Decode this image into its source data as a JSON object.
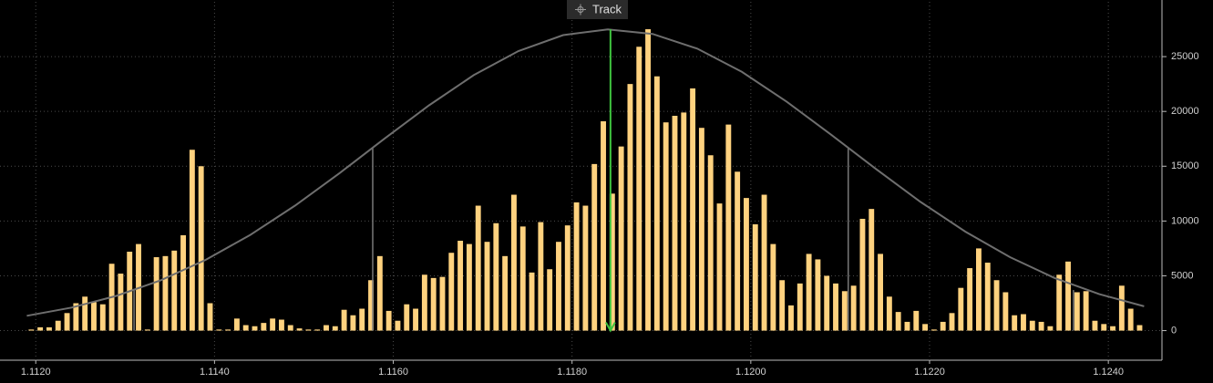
{
  "chart_data": {
    "type": "histogram",
    "button": "Track",
    "color": "#ffd27f",
    "bins": [
      1.1119,
      1.112,
      1.1121,
      1.1122,
      1.1123,
      1.1124,
      1.1125,
      1.1126,
      1.1127,
      1.1128,
      1.1129,
      1.113,
      1.1131,
      1.1132,
      1.1133,
      1.1134,
      1.1135,
      1.1136,
      1.1137,
      1.1138,
      1.1139,
      1.114,
      1.1141,
      1.1142,
      1.1143,
      1.1144,
      1.1145,
      1.1146,
      1.1147,
      1.1148,
      1.1149,
      1.115,
      1.1151,
      1.1152,
      1.1153,
      1.1154,
      1.1155,
      1.1156,
      1.1157,
      1.1158,
      1.1159,
      1.116,
      1.1161,
      1.1162,
      1.1163,
      1.1164,
      1.1165,
      1.1166,
      1.1167,
      1.1168,
      1.1169,
      1.117,
      1.1171,
      1.1172,
      1.1173,
      1.1174,
      1.1175,
      1.1176,
      1.1177,
      1.1178,
      1.1179,
      1.118,
      1.1181,
      1.1182,
      1.1183,
      1.1184,
      1.1185,
      1.1186,
      1.1187,
      1.1188,
      1.1189,
      1.119,
      1.1191,
      1.1192,
      1.1193,
      1.1194,
      1.1195,
      1.1196,
      1.1197,
      1.1198,
      1.1199,
      1.12,
      1.1201,
      1.1202,
      1.1203,
      1.1204,
      1.1205,
      1.1206,
      1.1207,
      1.1208,
      1.1209,
      1.121,
      1.1211,
      1.1212,
      1.1213,
      1.1214,
      1.1215,
      1.1216,
      1.1217,
      1.1218,
      1.1219,
      1.122,
      1.1221,
      1.1222,
      1.1223,
      1.1224,
      1.1225,
      1.1226,
      1.1227,
      1.1228,
      1.1229,
      1.123,
      1.1231,
      1.1232,
      1.1233,
      1.1234,
      1.1235,
      1.1236,
      1.1237,
      1.1238,
      1.1239,
      1.124,
      1.1241,
      1.1242,
      1.1243,
      1.1244
    ],
    "values": [
      100,
      300,
      300,
      900,
      1600,
      2500,
      3100,
      2600,
      2400,
      6100,
      5200,
      7200,
      7900,
      100,
      6700,
      6800,
      7300,
      8700,
      16500,
      15000,
      2500,
      100,
      100,
      1100,
      500,
      400,
      700,
      1100,
      1000,
      500,
      200,
      100,
      100,
      500,
      400,
      1900,
      1400,
      2000,
      4600,
      6800,
      1800,
      900,
      2400,
      2000,
      5100,
      4800,
      4900,
      7100,
      8200,
      7900,
      11400,
      8100,
      9800,
      6800,
      12400,
      9500,
      5300,
      9900,
      5600,
      8100,
      9600,
      11700,
      11400,
      15200,
      19100,
      12500,
      16800,
      22500,
      25900,
      27500,
      23200,
      19000,
      19600,
      19900,
      22100,
      18500,
      16000,
      11600,
      18800,
      14500,
      12100,
      9700,
      12400,
      7900,
      4600,
      2300,
      4300,
      7000,
      6500,
      5000,
      4300,
      3600,
      4100,
      10200,
      11100,
      7000,
      3100,
      1700,
      800,
      1800,
      600,
      100,
      800,
      1600,
      3900,
      5700,
      7500,
      6200,
      4600,
      3500,
      1400,
      1500,
      900,
      800,
      400,
      5100,
      6300,
      3500,
      3600,
      900,
      600,
      400,
      4100,
      2000,
      500
    ],
    "curve": {
      "type": "line",
      "color": "#6e6e6e",
      "x": [
        1.1119,
        1.1124,
        1.1129,
        1.1134,
        1.1139,
        1.1144,
        1.1149,
        1.1154,
        1.1159,
        1.1164,
        1.1169,
        1.1174,
        1.1179,
        1.1184,
        1.1189,
        1.1194,
        1.1199,
        1.1204,
        1.1209,
        1.1214,
        1.1219,
        1.1224,
        1.1229,
        1.1234,
        1.1239,
        1.1244
      ],
      "values": [
        1350,
        2100,
        3170,
        4600,
        6450,
        8730,
        11400,
        14370,
        17500,
        20560,
        23310,
        25510,
        26960,
        27490,
        27070,
        25730,
        23610,
        20900,
        17870,
        14750,
        11740,
        9030,
        6700,
        4800,
        3320,
        2220
      ]
    },
    "reference_lines": [
      {
        "x": 1.1131,
        "value": 3700
      },
      {
        "x": 1.11577,
        "value": 16700
      },
      {
        "x": 1.12109,
        "value": 16700
      },
      {
        "x": 1.12361,
        "value": 3700
      }
    ],
    "mean_marker": {
      "x": 1.11843,
      "color": "#3ec43e"
    },
    "xlim": [
      1.1116,
      1.1246
    ],
    "ylim": [
      -2700,
      30000
    ],
    "xticks": [
      {
        "value": 1.112,
        "label": "1.1120"
      },
      {
        "value": 1.114,
        "label": "1.1140"
      },
      {
        "value": 1.116,
        "label": "1.1160"
      },
      {
        "value": 1.118,
        "label": "1.1180"
      },
      {
        "value": 1.12,
        "label": "1.1200"
      },
      {
        "value": 1.122,
        "label": "1.1220"
      },
      {
        "value": 1.124,
        "label": "1.1240"
      }
    ],
    "yticks": [
      0,
      5000,
      10000,
      15000,
      20000,
      25000
    ],
    "grid": true
  }
}
